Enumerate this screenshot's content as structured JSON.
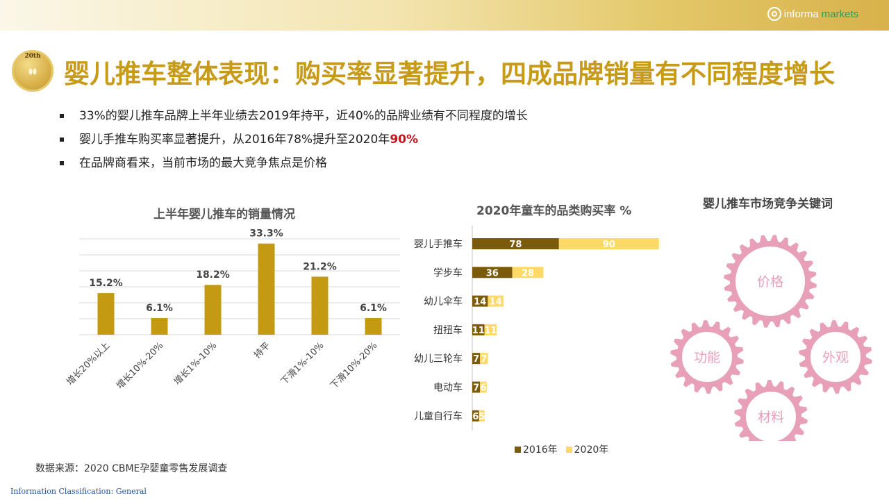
{
  "header": {
    "brand_a": "informa",
    "brand_b": "markets",
    "brand_green": "#2e9a55"
  },
  "badge": {
    "text": "20th"
  },
  "title": "婴儿推车整体表现：购买率显著提升，四成品牌销量有不同程度增长",
  "bullets": [
    {
      "text": "33%的婴儿推车品牌上半年业绩去2019年持平，近40%的品牌业绩有不同程度的增长",
      "highlight": ""
    },
    {
      "text": "婴儿手推车购买率显著提升，从2016年78%提升至2020年",
      "highlight": "90%"
    },
    {
      "text": "在品牌商看来，当前市场的最大竞争焦点是价格",
      "highlight": ""
    }
  ],
  "colors": {
    "gold": "#c79a17",
    "bar1": "#c49a12",
    "dark": "#7b5a0a",
    "light": "#ffd966",
    "pink": "#e8a0b8",
    "highlight": "#c4161c"
  },
  "chart_data": [
    {
      "type": "bar",
      "title": "上半年婴儿推车的销量情况",
      "categories": [
        "增长20%以上",
        "增长10%-20%",
        "增长1%-10%",
        "持平",
        "下滑1%-10%",
        "下滑10%-20%"
      ],
      "values": [
        15.2,
        6.1,
        18.2,
        33.3,
        21.2,
        6.1
      ],
      "data_labels": [
        "15.2%",
        "6.1%",
        "18.2%",
        "33.3%",
        "21.2%",
        "6.1%"
      ],
      "ylim": [
        0,
        35
      ],
      "grid": true
    },
    {
      "type": "bar",
      "orientation": "horizontal-stacked",
      "title": "2020年童车的品类购买率 %",
      "categories": [
        "婴儿手推车",
        "学步车",
        "幼儿伞车",
        "扭扭车",
        "幼儿三轮车",
        "电动车",
        "儿童自行车"
      ],
      "series": [
        {
          "name": "2016年",
          "values": [
            78,
            36,
            14,
            11,
            7,
            7,
            6
          ]
        },
        {
          "name": "2020年",
          "values": [
            90,
            28,
            14,
            11,
            7,
            6,
            5
          ]
        }
      ],
      "legend": "bottom"
    }
  ],
  "keywords": {
    "title": "婴儿推车市场竞争关键词",
    "items": [
      "价格",
      "功能",
      "外观",
      "材料"
    ]
  },
  "source": "数据来源：2020 CBME孕婴童零售发展调查",
  "classification": "Information Classification: General"
}
